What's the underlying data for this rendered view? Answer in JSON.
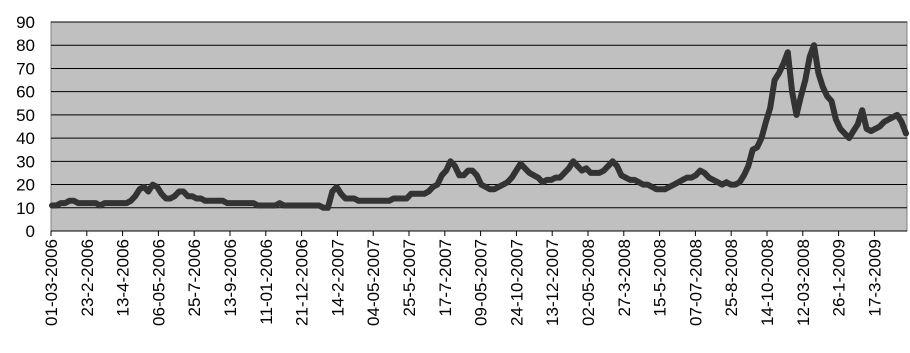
{
  "chart_data": {
    "type": "line",
    "title": "",
    "xlabel": "",
    "ylabel": "",
    "ylim": [
      0,
      90
    ],
    "yticks": [
      0,
      10,
      20,
      30,
      40,
      50,
      60,
      70,
      80,
      90
    ],
    "grid": true,
    "legend": "none",
    "colors": {
      "plot_background": "#c0c0c0",
      "line": "#333333",
      "gridline": "#000000"
    },
    "xtick_labels": [
      "01-03-2006",
      "23-2-2006",
      "13-4-2006",
      "06-05-2006",
      "25-7-2006",
      "13-9-2006",
      "11-01-2006",
      "21-12-2006",
      "14-2-2007",
      "04-05-2007",
      "25-5-2007",
      "17-7-2007",
      "09-05-2007",
      "24-10-2007",
      "13-12-2007",
      "02-05-2008",
      "27-3-2008",
      "15-5-2008",
      "07-07-2008",
      "25-8-2008",
      "14-10-2008",
      "12-03-2008",
      "26-1-2009",
      "17-3-2009"
    ],
    "series": [
      {
        "values": [
          11,
          11,
          12,
          12,
          13,
          13,
          12,
          12,
          12,
          12,
          12,
          11,
          12,
          12,
          12,
          12,
          12,
          12,
          13,
          15,
          18,
          19,
          17,
          20,
          19,
          16,
          14,
          14,
          15,
          17,
          17,
          15,
          15,
          14,
          14,
          13,
          13,
          13,
          13,
          13,
          12,
          12,
          12,
          12,
          12,
          12,
          12,
          11,
          11,
          11,
          11,
          11,
          12,
          11,
          11,
          11,
          11,
          11,
          11,
          11,
          11,
          11,
          10,
          10,
          17,
          19,
          16,
          14,
          14,
          14,
          13,
          13,
          13,
          13,
          13,
          13,
          13,
          13,
          14,
          14,
          14,
          14,
          16,
          16,
          16,
          16,
          17,
          19,
          20,
          24,
          26,
          30,
          28,
          24,
          24,
          26,
          26,
          24,
          20,
          19,
          18,
          18,
          19,
          20,
          21,
          23,
          26,
          29,
          27,
          25,
          24,
          23,
          21,
          22,
          22,
          23,
          23,
          25,
          27,
          30,
          28,
          26,
          27,
          25,
          25,
          25,
          26,
          28,
          30,
          28,
          24,
          23,
          22,
          22,
          21,
          20,
          20,
          19,
          18,
          18,
          18,
          19,
          20,
          21,
          22,
          23,
          23,
          24,
          26,
          25,
          23,
          22,
          21,
          20,
          21,
          20,
          20,
          21,
          24,
          28,
          35,
          36,
          40,
          47,
          53,
          65,
          68,
          72,
          77,
          60,
          50,
          58,
          65,
          75,
          80,
          68,
          62,
          58,
          56,
          48,
          44,
          42,
          40,
          43,
          46,
          52,
          44,
          43,
          44,
          45,
          47,
          48,
          49,
          50,
          47,
          42
        ]
      }
    ]
  }
}
